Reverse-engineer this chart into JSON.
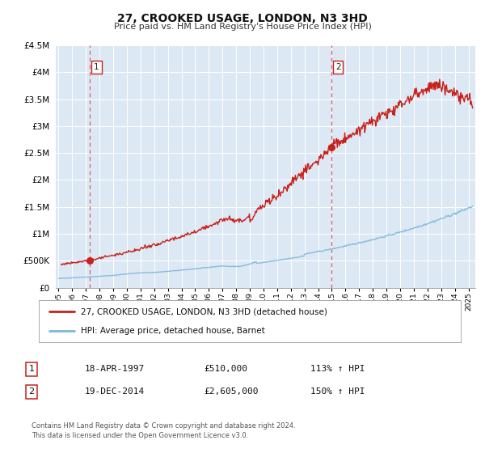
{
  "title": "27, CROOKED USAGE, LONDON, N3 3HD",
  "subtitle": "Price paid vs. HM Land Registry's House Price Index (HPI)",
  "legend_line1": "27, CROOKED USAGE, LONDON, N3 3HD (detached house)",
  "legend_line2": "HPI: Average price, detached house, Barnet",
  "footnote1": "Contains HM Land Registry data © Crown copyright and database right 2024.",
  "footnote2": "This data is licensed under the Open Government Licence v3.0.",
  "point1_label": "18-APR-1997",
  "point1_price": "£510,000",
  "point1_hpi": "113% ↑ HPI",
  "point1_date_num": 1997.29,
  "point1_value": 510000,
  "point2_label": "19-DEC-2014",
  "point2_price": "£2,605,000",
  "point2_hpi": "150% ↑ HPI",
  "point2_date_num": 2014.96,
  "point2_value": 2605000,
  "hpi_color": "#7db8d8",
  "price_color": "#c8201a",
  "marker_color": "#c8201a",
  "vline_color": "#e06060",
  "plot_bg": "#dce9f5",
  "ylim": [
    0,
    4500000
  ],
  "xlim_start": 1994.8,
  "xlim_end": 2025.5,
  "yticks": [
    0,
    500000,
    1000000,
    1500000,
    2000000,
    2500000,
    3000000,
    3500000,
    4000000,
    4500000
  ],
  "ytick_labels": [
    "£0",
    "£500K",
    "£1M",
    "£1.5M",
    "£2M",
    "£2.5M",
    "£3M",
    "£3.5M",
    "£4M",
    "£4.5M"
  ],
  "xticks": [
    1995,
    1996,
    1997,
    1998,
    1999,
    2000,
    2001,
    2002,
    2003,
    2004,
    2005,
    2006,
    2007,
    2008,
    2009,
    2010,
    2011,
    2012,
    2013,
    2014,
    2015,
    2016,
    2017,
    2018,
    2019,
    2020,
    2021,
    2022,
    2023,
    2024,
    2025
  ]
}
